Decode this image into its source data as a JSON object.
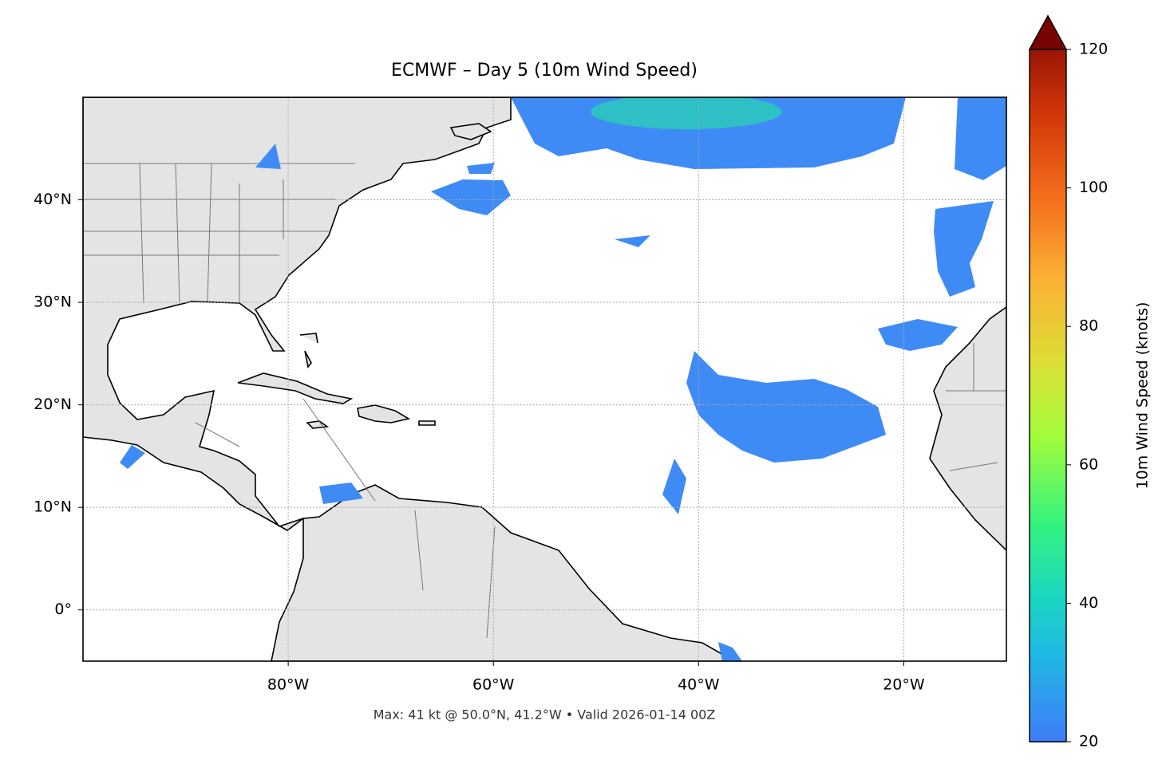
{
  "title": "ECMWF – Day 5 (10m Wind Speed)",
  "footer": "Max: 41 kt @ 50.0°N, 41.2°W • Valid 2026-01-14 00Z",
  "map": {
    "lonlim": [
      -100,
      -10
    ],
    "latlim": [
      -5,
      50
    ],
    "lon_ticks": [
      {
        "value": -80,
        "label": "80°W"
      },
      {
        "value": -60,
        "label": "60°W"
      },
      {
        "value": -40,
        "label": "40°W"
      },
      {
        "value": -20,
        "label": "20°W"
      }
    ],
    "lat_ticks": [
      {
        "value": 40,
        "label": "40°N"
      },
      {
        "value": 30,
        "label": "30°N"
      },
      {
        "value": 20,
        "label": "20°N"
      },
      {
        "value": 10,
        "label": "10°N"
      },
      {
        "value": 0,
        "label": "0°"
      }
    ],
    "grid": true
  },
  "colorbar": {
    "label": "10m Wind Speed (knots)",
    "lim": [
      20,
      120
    ],
    "ticks": [
      20,
      40,
      60,
      80,
      100,
      120
    ],
    "colormap": "turbo"
  }
}
